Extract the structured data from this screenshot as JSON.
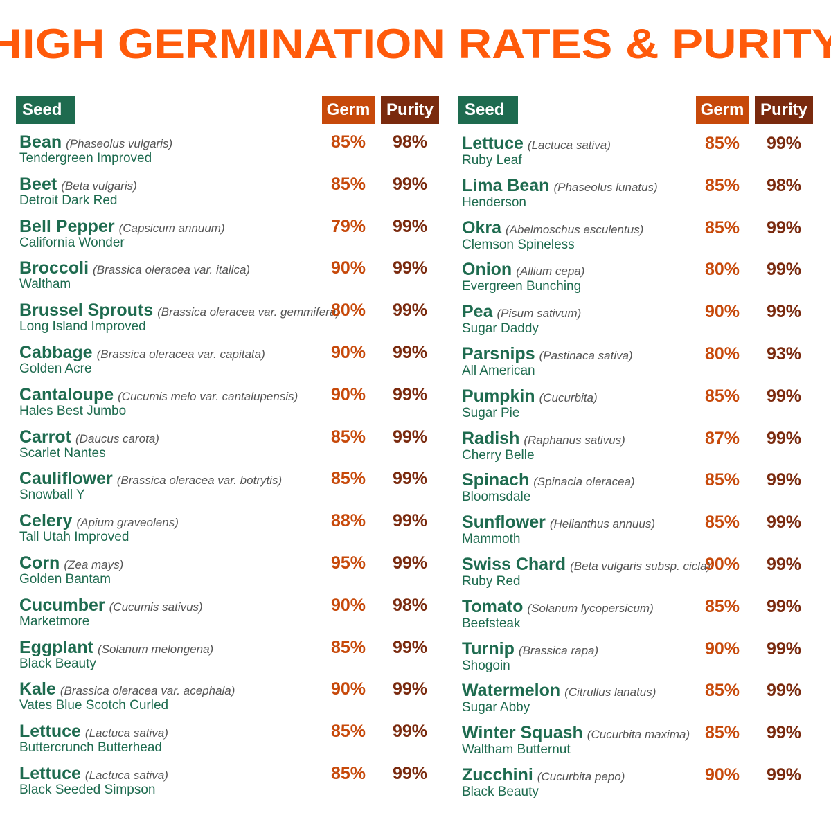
{
  "title": "HIGH GERMINATION RATES & PURITY",
  "headers": {
    "seed": "Seed",
    "germ": "Germ",
    "purity": "Purity"
  },
  "colors": {
    "title": "#ff5a0a",
    "green": "#1e6b4f",
    "germ": "#c7490a",
    "purity": "#7a2a0e"
  },
  "left": [
    {
      "name": "Bean",
      "sci": "(Phaseolus vulgaris)",
      "variety": "Tendergreen Improved",
      "germ": "85%",
      "purity": "98%"
    },
    {
      "name": "Beet",
      "sci": "(Beta vulgaris)",
      "variety": "Detroit Dark Red",
      "germ": "85%",
      "purity": "99%"
    },
    {
      "name": "Bell Pepper",
      "sci": "(Capsicum annuum)",
      "variety": "California Wonder",
      "germ": "79%",
      "purity": "99%"
    },
    {
      "name": "Broccoli",
      "sci": "(Brassica oleracea var. italica)",
      "variety": "Waltham",
      "germ": "90%",
      "purity": "99%"
    },
    {
      "name": "Brussel Sprouts",
      "sci": "(Brassica oleracea var. gemmifera)",
      "variety": "Long Island Improved",
      "germ": "80%",
      "purity": "99%"
    },
    {
      "name": "Cabbage",
      "sci": "(Brassica oleracea var. capitata)",
      "variety": "Golden Acre",
      "germ": "90%",
      "purity": "99%"
    },
    {
      "name": "Cantaloupe",
      "sci": "(Cucumis melo var. cantalupensis)",
      "variety": "Hales Best Jumbo",
      "germ": "90%",
      "purity": "99%"
    },
    {
      "name": "Carrot",
      "sci": "(Daucus carota)",
      "variety": "Scarlet Nantes",
      "germ": "85%",
      "purity": "99%"
    },
    {
      "name": "Cauliflower",
      "sci": "(Brassica oleracea var. botrytis)",
      "variety": "Snowball Y",
      "germ": "85%",
      "purity": "99%"
    },
    {
      "name": "Celery",
      "sci": "(Apium graveolens)",
      "variety": "Tall Utah Improved",
      "germ": "88%",
      "purity": "99%"
    },
    {
      "name": "Corn",
      "sci": "(Zea mays)",
      "variety": "Golden Bantam",
      "germ": "95%",
      "purity": "99%"
    },
    {
      "name": "Cucumber",
      "sci": "(Cucumis sativus)",
      "variety": "Marketmore",
      "germ": "90%",
      "purity": "98%"
    },
    {
      "name": "Eggplant",
      "sci": "(Solanum melongena)",
      "variety": "Black Beauty",
      "germ": "85%",
      "purity": "99%"
    },
    {
      "name": "Kale",
      "sci": "(Brassica oleracea var. acephala)",
      "variety": "Vates Blue Scotch Curled",
      "germ": "90%",
      "purity": "99%"
    },
    {
      "name": "Lettuce",
      "sci": "(Lactuca sativa)",
      "variety": "Buttercrunch Butterhead",
      "germ": "85%",
      "purity": "99%"
    },
    {
      "name": "Lettuce",
      "sci": "(Lactuca sativa)",
      "variety": "Black Seeded Simpson",
      "germ": "85%",
      "purity": "99%"
    }
  ],
  "right": [
    {
      "name": "Lettuce",
      "sci": "(Lactuca sativa)",
      "variety": "Ruby Leaf",
      "germ": "85%",
      "purity": "99%"
    },
    {
      "name": "Lima Bean",
      "sci": "(Phaseolus lunatus)",
      "variety": "Henderson",
      "germ": "85%",
      "purity": "98%"
    },
    {
      "name": "Okra",
      "sci": "(Abelmoschus esculentus)",
      "variety": "Clemson Spineless",
      "germ": "85%",
      "purity": "99%"
    },
    {
      "name": "Onion",
      "sci": "(Allium cepa)",
      "variety": "Evergreen Bunching",
      "germ": "80%",
      "purity": "99%"
    },
    {
      "name": "Pea",
      "sci": "(Pisum sativum)",
      "variety": "Sugar Daddy",
      "germ": "90%",
      "purity": "99%"
    },
    {
      "name": "Parsnips",
      "sci": "(Pastinaca sativa)",
      "variety": "All American",
      "germ": "80%",
      "purity": "93%"
    },
    {
      "name": "Pumpkin",
      "sci": "(Cucurbita)",
      "variety": "Sugar Pie",
      "germ": "85%",
      "purity": "99%"
    },
    {
      "name": "Radish",
      "sci": "(Raphanus sativus)",
      "variety": "Cherry Belle",
      "germ": "87%",
      "purity": "99%"
    },
    {
      "name": "Spinach",
      "sci": "(Spinacia oleracea)",
      "variety": "Bloomsdale",
      "germ": "85%",
      "purity": "99%"
    },
    {
      "name": "Sunflower",
      "sci": "(Helianthus annuus)",
      "variety": "Mammoth",
      "germ": "85%",
      "purity": "99%"
    },
    {
      "name": "Swiss Chard",
      "sci": "(Beta vulgaris subsp. cicla)",
      "variety": "Ruby Red",
      "germ": "90%",
      "purity": "99%"
    },
    {
      "name": "Tomato",
      "sci": "(Solanum lycopersicum)",
      "variety": "Beefsteak",
      "germ": "85%",
      "purity": "99%"
    },
    {
      "name": "Turnip",
      "sci": "(Brassica rapa)",
      "variety": "Shogoin",
      "germ": "90%",
      "purity": "99%"
    },
    {
      "name": "Watermelon",
      "sci": "(Citrullus lanatus)",
      "variety": "Sugar Abby",
      "germ": "85%",
      "purity": "99%"
    },
    {
      "name": "Winter Squash",
      "sci": "(Cucurbita maxima)",
      "variety": "Waltham Butternut",
      "germ": "85%",
      "purity": "99%"
    },
    {
      "name": "Zucchini",
      "sci": "(Cucurbita pepo)",
      "variety": "Black Beauty",
      "germ": "90%",
      "purity": "99%"
    }
  ]
}
